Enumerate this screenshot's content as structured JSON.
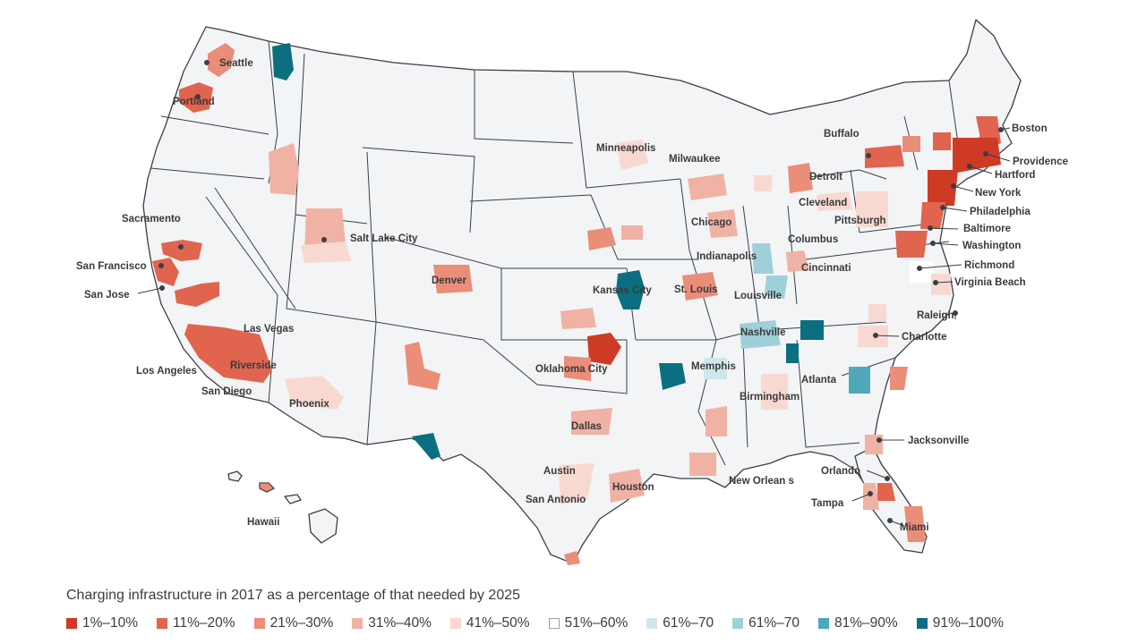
{
  "legend": {
    "title": "Charging infrastructure in 2017 as a percentage of that needed by 2025",
    "items": [
      {
        "label": "1%–10%",
        "color": "#cf3a24"
      },
      {
        "label": "11%–20%",
        "color": "#e1644f"
      },
      {
        "label": "21%–30%",
        "color": "#ea8d79"
      },
      {
        "label": "31%–40%",
        "color": "#f0b2a4"
      },
      {
        "label": "41%–50%",
        "color": "#f8d9d1"
      },
      {
        "label": "51%–60%",
        "color": "#ffffff"
      },
      {
        "label": "61%–70",
        "color": "#cfe7ec"
      },
      {
        "label": "61%–70",
        "color": "#9fd0da"
      },
      {
        "label": "81%–90%",
        "color": "#4ea8ba"
      },
      {
        "label": "91%–100%",
        "color": "#0b6f81"
      }
    ]
  },
  "cities": {
    "seattle": "Seattle",
    "portland": "Portland",
    "sacramento": "Sacramento",
    "san_francisco": "San Francisco",
    "san_jose": "San Jose",
    "las_vegas": "Las Vegas",
    "los_angeles": "Los Angeles",
    "riverside": "Riverside",
    "san_diego": "San Diego",
    "phoenix": "Phoenix",
    "salt_lake_city": "Salt Lake City",
    "denver": "Denver",
    "hawaii": "Hawaii",
    "minneapolis": "Minneapolis",
    "milwaukee": "Milwaukee",
    "chicago": "Chicago",
    "kansas_city": "Kansas City",
    "st_louis": "St. Louis",
    "indianapolis": "Indianapolis",
    "louisville": "Louisville",
    "oklahoma_city": "Oklahoma City",
    "dallas": "Dallas",
    "austin": "Austin",
    "san_antonio": "San Antonio",
    "houston": "Houston",
    "memphis": "Memphis",
    "nashville": "Nashville",
    "birmingham": "Birmingham",
    "atlanta": "Atlanta",
    "new_orleans": "New Orlean s",
    "jacksonville": "Jacksonville",
    "orlando": "Orlando",
    "tampa": "Tampa",
    "miami": "Miami",
    "detroit": "Detroit",
    "cleveland": "Cleveland",
    "columbus": "Columbus",
    "cincinnati": "Cincinnati",
    "pittsburgh": "Pittsburgh",
    "buffalo": "Buffalo",
    "boston": "Boston",
    "providence": "Providence",
    "hartford": "Hartford",
    "new_york": "New York",
    "philadelphia": "Philadelphia",
    "baltimore": "Baltimore",
    "washington": "Washington",
    "richmond": "Richmond",
    "virginia_beach": "Virginia Beach",
    "raleigh": "Raleigh",
    "charlotte": "Charlotte"
  }
}
